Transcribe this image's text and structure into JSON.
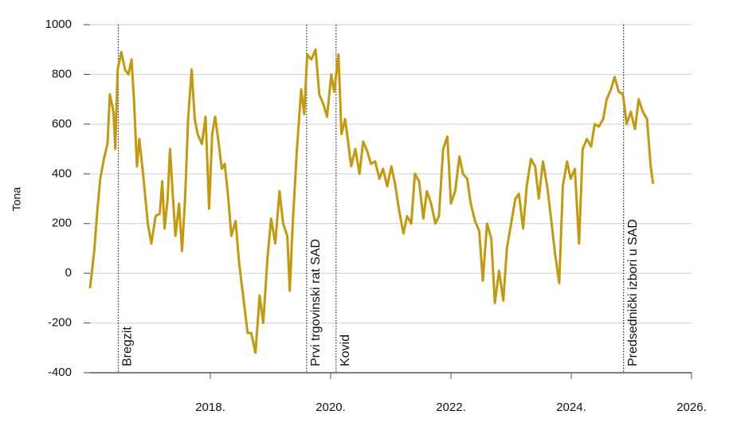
{
  "chart_data": {
    "type": "line",
    "y_label": "Tona",
    "xlim": [
      2016,
      2026
    ],
    "xticks": [
      {
        "value": 2018,
        "label": "2018."
      },
      {
        "value": 2020,
        "label": "2020."
      },
      {
        "value": 2022,
        "label": "2022."
      },
      {
        "value": 2024,
        "label": "2024."
      },
      {
        "value": 2026,
        "label": "2026."
      }
    ],
    "ylim": [
      -400,
      1000
    ],
    "yticks": [
      -400,
      -200,
      0,
      200,
      400,
      600,
      800,
      1000
    ],
    "grid": true,
    "color": "#c49a0c",
    "annotations": [
      {
        "x": 2016.47,
        "label": "Bregzit"
      },
      {
        "x": 2019.6,
        "label": "Prvi trgovinski rat SAD"
      },
      {
        "x": 2020.09,
        "label": "Kovid"
      },
      {
        "x": 2024.87,
        "label": "Predsednički izbori u SAD"
      }
    ],
    "x": [
      2016.0,
      2016.07,
      2016.12,
      2016.17,
      2016.23,
      2016.29,
      2016.33,
      2016.39,
      2016.42,
      2016.46,
      2016.52,
      2016.58,
      2016.64,
      2016.69,
      2016.73,
      2016.78,
      2016.82,
      2016.89,
      2016.96,
      2017.02,
      2017.09,
      2017.16,
      2017.2,
      2017.24,
      2017.29,
      2017.33,
      2017.37,
      2017.42,
      2017.48,
      2017.53,
      2017.58,
      2017.63,
      2017.69,
      2017.74,
      2017.79,
      2017.86,
      2017.92,
      2017.98,
      2018.03,
      2018.08,
      2018.14,
      2018.19,
      2018.24,
      2018.3,
      2018.35,
      2018.42,
      2018.48,
      2018.55,
      2018.62,
      2018.68,
      2018.75,
      2018.82,
      2018.88,
      2018.95,
      2019.01,
      2019.08,
      2019.15,
      2019.21,
      2019.28,
      2019.32,
      2019.37,
      2019.44,
      2019.51,
      2019.56,
      2019.61,
      2019.68,
      2019.75,
      2019.81,
      2019.88,
      2019.94,
      2020.01,
      2020.06,
      2020.13,
      2020.18,
      2020.24,
      2020.29,
      2020.34,
      2020.41,
      2020.48,
      2020.54,
      2020.61,
      2020.67,
      2020.74,
      2020.81,
      2020.87,
      2020.94,
      2021.01,
      2021.07,
      2021.14,
      2021.21,
      2021.27,
      2021.34,
      2021.4,
      2021.47,
      2021.54,
      2021.6,
      2021.67,
      2021.74,
      2021.8,
      2021.87,
      2021.94,
      2022.0,
      2022.07,
      2022.14,
      2022.2,
      2022.27,
      2022.33,
      2022.4,
      2022.47,
      2022.53,
      2022.6,
      2022.67,
      2022.73,
      2022.8,
      2022.87,
      2022.93,
      2023.0,
      2023.07,
      2023.13,
      2023.2,
      2023.26,
      2023.33,
      2023.4,
      2023.46,
      2023.53,
      2023.6,
      2023.66,
      2023.73,
      2023.8,
      2023.86,
      2023.93,
      2023.99,
      2024.06,
      2024.13,
      2024.19,
      2024.26,
      2024.33,
      2024.39,
      2024.46,
      2024.53,
      2024.59,
      2024.66,
      2024.72,
      2024.79,
      2024.86,
      2024.92,
      2024.99,
      2025.06,
      2025.12,
      2025.19,
      2025.26,
      2025.32,
      2025.36
    ],
    "values": [
      -60,
      90,
      250,
      380,
      460,
      520,
      720,
      650,
      500,
      820,
      890,
      820,
      800,
      860,
      700,
      430,
      540,
      380,
      200,
      120,
      230,
      240,
      370,
      180,
      300,
      500,
      340,
      150,
      280,
      90,
      300,
      620,
      820,
      620,
      560,
      520,
      630,
      260,
      560,
      630,
      520,
      420,
      440,
      300,
      150,
      210,
      40,
      -100,
      -240,
      -240,
      -320,
      -90,
      -200,
      60,
      220,
      120,
      330,
      200,
      150,
      -70,
      200,
      500,
      740,
      640,
      880,
      860,
      900,
      720,
      680,
      630,
      800,
      730,
      880,
      560,
      620,
      530,
      430,
      500,
      400,
      530,
      490,
      440,
      450,
      380,
      420,
      350,
      430,
      360,
      250,
      160,
      230,
      200,
      400,
      370,
      220,
      330,
      280,
      200,
      230,
      500,
      550,
      280,
      330,
      470,
      400,
      380,
      280,
      210,
      170,
      -30,
      200,
      140,
      -120,
      10,
      -110,
      100,
      200,
      300,
      320,
      180,
      350,
      460,
      430,
      300,
      450,
      350,
      230,
      80,
      -40,
      350,
      450,
      380,
      420,
      120,
      500,
      540,
      510,
      600,
      590,
      620,
      700,
      740,
      790,
      730,
      720,
      600,
      650,
      580,
      700,
      650,
      620,
      430,
      360
    ]
  }
}
